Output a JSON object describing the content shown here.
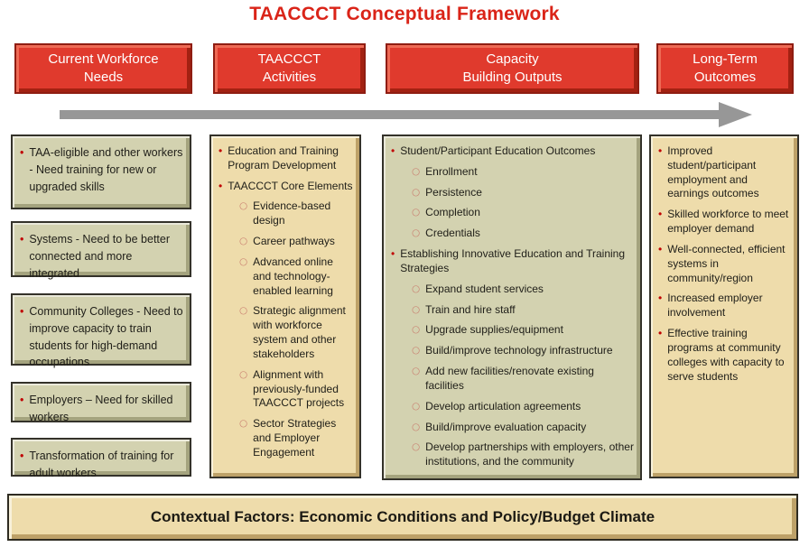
{
  "title": "TAACCCT Conceptual Framework",
  "colors": {
    "accent_red": "#e03a2d",
    "title_red": "#da2418",
    "olive_box": "#d3d2b0",
    "tan_box": "#eedcab",
    "arrow_gray": "#979797",
    "bullet_red": "#c00000",
    "sub_bullet_ring": "#c97d6e"
  },
  "headers": [
    {
      "label": "Current Workforce\nNeeds"
    },
    {
      "label": "TAACCCT\nActivities"
    },
    {
      "label": "Capacity\nBuilding Outputs"
    },
    {
      "label": "Long-Term\nOutcomes"
    }
  ],
  "current_workforce_needs": {
    "boxes": [
      {
        "text": "TAA-eligible and other workers - Need training for new or upgraded skills"
      },
      {
        "text": "Systems - Need to be better connected and more integrated"
      },
      {
        "text": "Community Colleges - Need to improve capacity to train students for high-demand occupations"
      },
      {
        "text": "Employers – Need for skilled workers"
      },
      {
        "text": "Transformation of training for adult workers"
      }
    ]
  },
  "taaccct_activities": {
    "items": [
      {
        "level": 1,
        "text": "Education and Training Program Development"
      },
      {
        "level": 1,
        "text": "TAACCCT Core Elements"
      },
      {
        "level": 2,
        "text": "Evidence-based design"
      },
      {
        "level": 2,
        "text": "Career pathways"
      },
      {
        "level": 2,
        "text": "Advanced online and technology-enabled learning"
      },
      {
        "level": 2,
        "text": "Strategic alignment with workforce system and other stakeholders"
      },
      {
        "level": 2,
        "text": "Alignment with previously-funded TAACCCT projects"
      },
      {
        "level": 2,
        "text": "Sector Strategies and Employer Engagement"
      }
    ]
  },
  "capacity_building_outputs": {
    "items": [
      {
        "level": 1,
        "text": "Student/Participant Education Outcomes"
      },
      {
        "level": 2,
        "text": "Enrollment"
      },
      {
        "level": 2,
        "text": "Persistence"
      },
      {
        "level": 2,
        "text": "Completion"
      },
      {
        "level": 2,
        "text": "Credentials"
      },
      {
        "level": 1,
        "text": "Establishing Innovative Education and Training Strategies"
      },
      {
        "level": 2,
        "text": "Expand student services"
      },
      {
        "level": 2,
        "text": "Train and hire staff"
      },
      {
        "level": 2,
        "text": "Upgrade supplies/equipment"
      },
      {
        "level": 2,
        "text": "Build/improve technology infrastructure"
      },
      {
        "level": 2,
        "text": "Add new facilities/renovate existing facilities"
      },
      {
        "level": 2,
        "text": "Develop articulation agreements"
      },
      {
        "level": 2,
        "text": "Build/improve evaluation capacity"
      },
      {
        "level": 2,
        "text": "Develop partnerships with employers, other institutions, and the community"
      }
    ]
  },
  "long_term_outcomes": {
    "items": [
      {
        "level": 1,
        "text": "Improved student/participant employment and earnings outcomes"
      },
      {
        "level": 1,
        "text": "Skilled workforce to meet employer demand"
      },
      {
        "level": 1,
        "text": "Well-connected, efficient systems in community/region"
      },
      {
        "level": 1,
        "text": "Increased employer involvement"
      },
      {
        "level": 1,
        "text": "Effective training programs at community colleges with capacity to serve students"
      }
    ]
  },
  "contextual_factors": {
    "label": "Contextual Factors: Economic Conditions and Policy/Budget Climate"
  }
}
